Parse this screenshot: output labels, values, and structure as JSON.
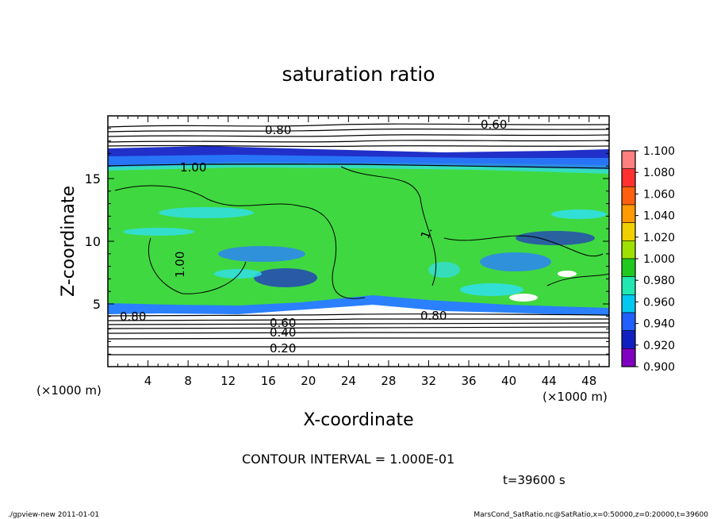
{
  "chart_data": {
    "type": "heatmap",
    "title": "saturation ratio",
    "xlabel": "X-coordinate",
    "ylabel": "Z-coordinate",
    "x_unit": "(×1000 m)",
    "y_unit": "(×1000 m)",
    "xlim": [
      0,
      50
    ],
    "ylim": [
      0,
      20
    ],
    "x_ticks": [
      "4",
      "8",
      "12",
      "16",
      "20",
      "24",
      "28",
      "32",
      "36",
      "40",
      "44",
      "48"
    ],
    "y_ticks": [
      "5",
      "10",
      "15"
    ],
    "colorbar": {
      "levels": [
        "1.100",
        "1.080",
        "1.060",
        "1.040",
        "1.020",
        "1.000",
        "0.980",
        "0.960",
        "0.940",
        "0.920",
        "0.900"
      ],
      "colors": [
        "#ff8080",
        "#ff3030",
        "#ff6010",
        "#ff9a00",
        "#f0d000",
        "#a0e000",
        "#20c820",
        "#20e8b0",
        "#00c8f0",
        "#2060ff",
        "#1020c0",
        "#8000c0"
      ]
    },
    "contour_labels": [
      "0.80",
      "0.60",
      "1.00",
      "1.00",
      "1.",
      "0.80",
      "0.60",
      "0.40",
      "0.20",
      "0.80"
    ],
    "contour_interval": "CONTOUR INTERVAL = 1.000E-01",
    "time_label": "t=39600 s"
  },
  "footer": {
    "left": "./gpview-new  2011-01-01",
    "right": "MarsCond_SatRatio.nc@SatRatio,x=0:50000,z=0:20000,t=39600"
  },
  "colors": {
    "green": "#40d840",
    "deep_blue": "#2030c8",
    "blue": "#2a80ff",
    "cyan": "#30e0f0",
    "white": "#ffffff"
  }
}
